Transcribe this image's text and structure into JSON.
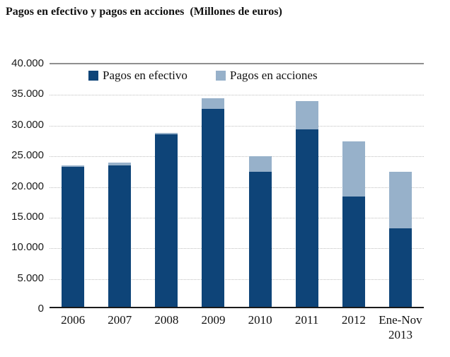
{
  "title": "Pagos en efectivo y pagos en acciones  (Millones de euros)",
  "colors": {
    "cash": "#0E4478",
    "shares": "#97B1CA",
    "grid_dotted": "#BFBFBF",
    "top_line": "#8F8F8F",
    "axis": "#1A1A1A",
    "background": "#FFFFFF"
  },
  "legend": [
    {
      "label": "Pagos en efectivo",
      "color": "#0E4478"
    },
    {
      "label": "Pagos en acciones",
      "color": "#97B1CA"
    }
  ],
  "chart_data": {
    "type": "bar",
    "stacked": true,
    "title": "Pagos en efectivo y pagos en acciones (Millones de euros)",
    "categories": [
      "2006",
      "2007",
      "2008",
      "2009",
      "2010",
      "2011",
      "2012",
      "Ene-Nov 2013"
    ],
    "series": [
      {
        "name": "Pagos en efectivo",
        "color": "#0E4478",
        "values": [
          22800,
          23000,
          28100,
          32300,
          22000,
          28900,
          18000,
          12800
        ]
      },
      {
        "name": "Pagos en acciones",
        "color": "#97B1CA",
        "values": [
          300,
          500,
          300,
          1700,
          2500,
          4600,
          9000,
          9200
        ]
      }
    ],
    "totals": [
      23100,
      23500,
      28400,
      34000,
      24500,
      33500,
      27000,
      22000
    ],
    "ylabel": "",
    "xlabel": "",
    "ylim": [
      0,
      40000
    ],
    "yticks": [
      0,
      5000,
      10000,
      15000,
      20000,
      25000,
      30000,
      35000,
      40000
    ],
    "ytick_labels": [
      "0",
      "5.000",
      "10.000",
      "15.000",
      "20.000",
      "25.000",
      "30.000",
      "35.000",
      "40.000"
    ],
    "grid": "horizontal-dotted",
    "legend_position": "top-inside"
  }
}
